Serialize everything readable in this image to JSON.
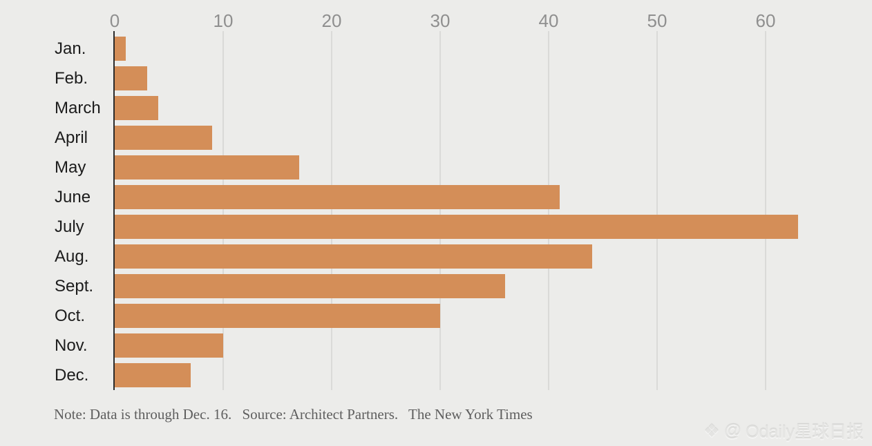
{
  "chart_data": {
    "type": "bar",
    "orientation": "horizontal",
    "title": "",
    "xlabel": "",
    "ylabel": "",
    "categories": [
      "Jan.",
      "Feb.",
      "March",
      "April",
      "May",
      "June",
      "July",
      "Aug.",
      "Sept.",
      "Oct.",
      "Nov.",
      "Dec."
    ],
    "values": [
      1,
      3,
      4,
      9,
      17,
      41,
      63,
      44,
      36,
      30,
      10,
      7
    ],
    "x_ticks": [
      0,
      10,
      20,
      30,
      40,
      50,
      60
    ],
    "xlim": [
      0,
      69
    ],
    "grid": true,
    "legend": false,
    "bar_color": "#d48e58"
  },
  "note": {
    "note_text": "Note: Data is through Dec. 16.",
    "source_text": "Source: Architect Partners.",
    "credit_text": "The New York Times"
  },
  "watermark": {
    "logo_glyph": "❖",
    "at": "@",
    "text": "Odaily星球日报"
  },
  "colors": {
    "background": "#ececea",
    "bar": "#d48e58",
    "tick_label": "#8f8f8f",
    "category_label": "#1c1c1c",
    "gridline": "#dadad8",
    "zero_line": "#2b2b2b",
    "note_text": "#5e5e5e"
  }
}
